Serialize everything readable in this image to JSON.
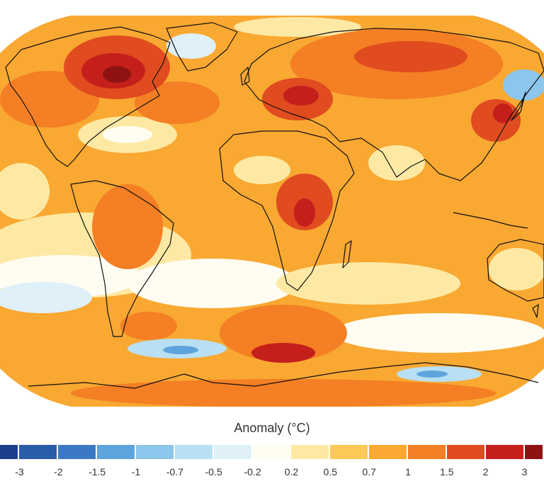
{
  "legend": {
    "title": "Anomaly (°C)",
    "tick_labels": [
      "-3",
      "-2",
      "-1.5",
      "-1",
      "-0.7",
      "-0.5",
      "-0.2",
      "0.2",
      "0.5",
      "0.7",
      "1",
      "1.5",
      "2",
      "3"
    ],
    "bins": [
      {
        "range": "< -3",
        "color": "#1b3f8b"
      },
      {
        "range": "-3 to -2",
        "color": "#2a5ca8"
      },
      {
        "range": "-2 to -1.5",
        "color": "#3c79c4"
      },
      {
        "range": "-1.5 to -1",
        "color": "#5ea4dc"
      },
      {
        "range": "-1 to -0.7",
        "color": "#8cc6ec"
      },
      {
        "range": "-0.7 to -0.5",
        "color": "#b9dff4"
      },
      {
        "range": "-0.5 to -0.2",
        "color": "#dff0f9"
      },
      {
        "range": "-0.2 to 0.2",
        "color": "#fffdf2"
      },
      {
        "range": "0.2 to 0.5",
        "color": "#fde9a4"
      },
      {
        "range": "0.5 to 0.7",
        "color": "#fcc858"
      },
      {
        "range": "0.7 to 1",
        "color": "#f9a832"
      },
      {
        "range": "1 to 1.5",
        "color": "#f47f24"
      },
      {
        "range": "1.5 to 2",
        "color": "#e04b1f"
      },
      {
        "range": "2 to 3",
        "color": "#c51f1c"
      },
      {
        "range": "> 3",
        "color": "#8f1212"
      }
    ]
  },
  "map": {
    "projection": "Robinson",
    "base_anomaly_bin": "0.7 to 1",
    "coastline_color": "#111111"
  }
}
